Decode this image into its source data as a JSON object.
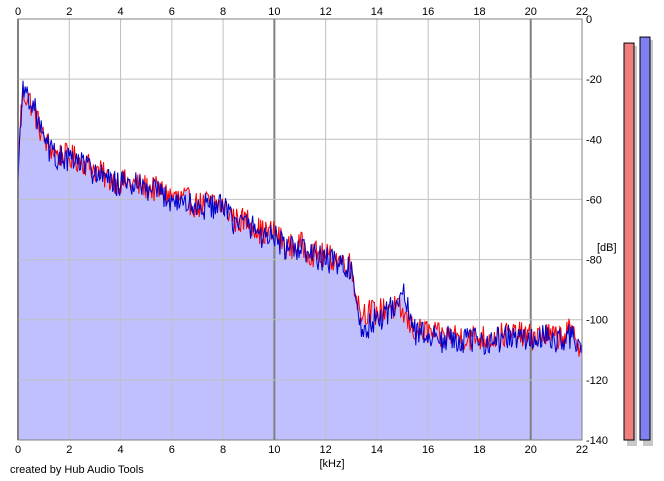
{
  "credit": "created by Hub Audio Tools",
  "colors": {
    "left_channel": "#ff0000",
    "right_channel": "#0000cc",
    "fill": "#c0c0fe",
    "grid": "#c0c0c0",
    "grid_major": "#808080",
    "left_meter": "#f08080",
    "right_meter": "#8080f0"
  },
  "chart_data": {
    "type": "area",
    "xlabel": "[kHz]",
    "ylabel": "[dB]",
    "xlim": [
      0,
      22
    ],
    "ylim": [
      -140,
      0
    ],
    "x_ticks": [
      "0",
      "2",
      "4",
      "6",
      "8",
      "10",
      "12",
      "14",
      "16",
      "18",
      "20",
      "22"
    ],
    "y_ticks": [
      "0",
      "-20",
      "-40",
      "-60",
      "-80",
      "-100",
      "-120",
      "-140"
    ],
    "grid": "on",
    "x": [
      0,
      0.1,
      0.2,
      0.4,
      0.6,
      0.8,
      1.0,
      1.2,
      1.5,
      2.0,
      2.5,
      3.0,
      3.5,
      4.0,
      4.5,
      5.0,
      5.5,
      6.0,
      6.5,
      7.0,
      7.5,
      8.0,
      8.5,
      9.0,
      9.5,
      10.0,
      10.5,
      11.0,
      11.5,
      12.0,
      12.5,
      13.0,
      13.2,
      13.4,
      13.6,
      14.0,
      14.5,
      15.0,
      15.5,
      16.0,
      16.5,
      17.0,
      17.5,
      18.0,
      18.5,
      19.0,
      19.5,
      20.0,
      20.5,
      21.0,
      21.5,
      22.0
    ],
    "series": [
      {
        "values": [
          -50,
          -32,
          -25,
          -26,
          -30,
          -35,
          -40,
          -42,
          -45,
          -46,
          -47,
          -50,
          -53,
          -54,
          -55,
          -56,
          -57,
          -59,
          -60,
          -62,
          -61,
          -62,
          -67,
          -67,
          -71,
          -71,
          -76,
          -75,
          -78,
          -79,
          -80,
          -82,
          -92,
          -98,
          -97,
          -98,
          -95,
          -98,
          -104,
          -104,
          -106,
          -105,
          -106,
          -106,
          -106,
          -105,
          -105,
          -106,
          -105,
          -106,
          -104,
          -109
        ]
      },
      {
        "values": [
          -54,
          -33,
          -24,
          -25,
          -29,
          -34,
          -41,
          -43,
          -46,
          -47,
          -48,
          -51,
          -54,
          -55,
          -55,
          -57,
          -58,
          -60,
          -61,
          -63,
          -62,
          -63,
          -68,
          -68,
          -72,
          -72,
          -77,
          -76,
          -79,
          -80,
          -81,
          -83,
          -98,
          -104,
          -103,
          -100,
          -97,
          -91,
          -104,
          -105,
          -107,
          -106,
          -107,
          -107,
          -107,
          -106,
          -106,
          -107,
          -106,
          -107,
          -105,
          -110
        ]
      }
    ],
    "level_meters": [
      {
        "channel": "left",
        "value_db": -8
      },
      {
        "channel": "right",
        "value_db": -6
      }
    ]
  }
}
